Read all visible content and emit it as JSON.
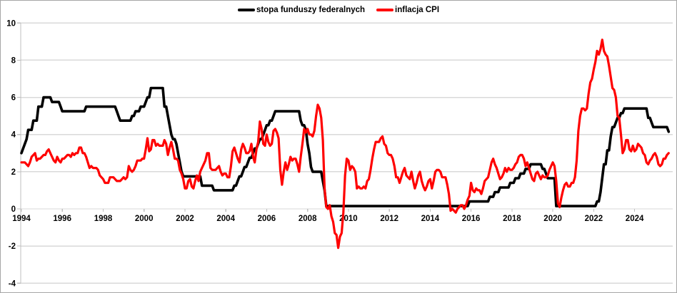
{
  "colors": {
    "series_fed_funds": "#000000",
    "series_cpi": "#ff0000",
    "gridline": "#d9d9d9",
    "axis_line": "#bfbfbf",
    "tick_text": "#000000",
    "frame_border": "#a6a6a6",
    "background": "#ffffff"
  },
  "chart_data": {
    "type": "line",
    "title": "",
    "xlabel": "",
    "ylabel": "",
    "grid": true,
    "legend_position": "top-center",
    "ylim": [
      -4,
      10
    ],
    "y_ticks": [
      10,
      8,
      6,
      4,
      2,
      0,
      -2,
      -4
    ],
    "x_ticks": [
      1994,
      1996,
      1998,
      2000,
      2002,
      2004,
      2006,
      2008,
      2010,
      2012,
      2014,
      2016,
      2018,
      2020,
      2022,
      2024
    ],
    "x_start": "1994-01",
    "x_end": "2025-09",
    "x_frequency": "monthly",
    "series": [
      {
        "name": "stopa funduszy federalnych",
        "color": "#000000",
        "line_width": 3.6,
        "values": [
          3,
          3.25,
          3.5,
          3.75,
          4.25,
          4.25,
          4.25,
          4.75,
          4.75,
          4.75,
          5.5,
          5.5,
          5.5,
          6,
          6,
          6,
          6,
          6,
          5.75,
          5.75,
          5.75,
          5.75,
          5.75,
          5.5,
          5.25,
          5.25,
          5.25,
          5.25,
          5.25,
          5.25,
          5.25,
          5.25,
          5.25,
          5.25,
          5.25,
          5.25,
          5.25,
          5.25,
          5.5,
          5.5,
          5.5,
          5.5,
          5.5,
          5.5,
          5.5,
          5.5,
          5.5,
          5.5,
          5.5,
          5.5,
          5.5,
          5.5,
          5.5,
          5.5,
          5.5,
          5.5,
          5.25,
          5,
          4.75,
          4.75,
          4.75,
          4.75,
          4.75,
          4.75,
          4.75,
          5,
          5,
          5.25,
          5.25,
          5.25,
          5.5,
          5.5,
          5.5,
          5.75,
          6,
          6,
          6.5,
          6.5,
          6.5,
          6.5,
          6.5,
          6.5,
          6.5,
          6.5,
          5.5,
          5.5,
          5,
          4.5,
          4,
          3.75,
          3.75,
          3.5,
          3,
          2.5,
          2,
          1.75,
          1.75,
          1.75,
          1.75,
          1.75,
          1.75,
          1.75,
          1.75,
          1.75,
          1.75,
          1.75,
          1.25,
          1.25,
          1.25,
          1.25,
          1.25,
          1.25,
          1.25,
          1,
          1,
          1,
          1,
          1,
          1,
          1,
          1,
          1,
          1,
          1,
          1,
          1.25,
          1.25,
          1.5,
          1.75,
          1.75,
          2,
          2.25,
          2.25,
          2.5,
          2.75,
          2.75,
          3,
          3.25,
          3.25,
          3.5,
          3.75,
          3.75,
          4,
          4.25,
          4.5,
          4.5,
          4.75,
          4.75,
          5,
          5.25,
          5.25,
          5.25,
          5.25,
          5.25,
          5.25,
          5.25,
          5.25,
          5.25,
          5.25,
          5.25,
          5.25,
          5.25,
          5.25,
          5.25,
          4.75,
          4.5,
          4.5,
          4.25,
          3.5,
          3,
          2.25,
          2,
          2,
          2,
          2,
          2,
          2,
          1.5,
          1,
          0.15,
          0.15,
          0.15,
          0.15,
          0.15,
          0.15,
          0.15,
          0.15,
          0.15,
          0.15,
          0.15,
          0.15,
          0.15,
          0.15,
          0.15,
          0.15,
          0.15,
          0.15,
          0.15,
          0.15,
          0.15,
          0.15,
          0.15,
          0.15,
          0.15,
          0.15,
          0.15,
          0.15,
          0.15,
          0.15,
          0.15,
          0.15,
          0.15,
          0.15,
          0.15,
          0.15,
          0.15,
          0.15,
          0.15,
          0.15,
          0.15,
          0.15,
          0.15,
          0.15,
          0.15,
          0.15,
          0.15,
          0.15,
          0.15,
          0.15,
          0.15,
          0.15,
          0.15,
          0.15,
          0.15,
          0.15,
          0.15,
          0.15,
          0.15,
          0.15,
          0.15,
          0.15,
          0.15,
          0.15,
          0.15,
          0.15,
          0.15,
          0.15,
          0.15,
          0.15,
          0.15,
          0.15,
          0.15,
          0.15,
          0.15,
          0.15,
          0.15,
          0.15,
          0.15,
          0.15,
          0.15,
          0.15,
          0.15,
          0.15,
          0.4,
          0.4,
          0.4,
          0.4,
          0.4,
          0.4,
          0.4,
          0.4,
          0.4,
          0.4,
          0.4,
          0.4,
          0.65,
          0.65,
          0.65,
          0.9,
          0.9,
          0.9,
          1.15,
          1.15,
          1.15,
          1.15,
          1.15,
          1.15,
          1.4,
          1.4,
          1.4,
          1.65,
          1.65,
          1.65,
          1.9,
          1.9,
          1.9,
          2.15,
          2.15,
          2.15,
          2.4,
          2.4,
          2.4,
          2.4,
          2.4,
          2.4,
          2.4,
          2.15,
          2.15,
          1.9,
          1.65,
          1.65,
          1.65,
          1.65,
          1.65,
          0.15,
          0.15,
          0.15,
          0.15,
          0.15,
          0.15,
          0.15,
          0.15,
          0.15,
          0.15,
          0.15,
          0.15,
          0.15,
          0.15,
          0.15,
          0.15,
          0.15,
          0.15,
          0.15,
          0.15,
          0.15,
          0.15,
          0.15,
          0.15,
          0.4,
          0.4,
          0.9,
          1.65,
          2.4,
          2.4,
          3.15,
          3.15,
          3.9,
          4.4,
          4.4,
          4.65,
          4.9,
          4.9,
          5.15,
          5.15,
          5.4,
          5.4,
          5.4,
          5.4,
          5.4,
          5.4,
          5.4,
          5.4,
          5.4,
          5.4,
          5.4,
          5.4,
          5.4,
          5.4,
          4.9,
          4.9,
          4.65,
          4.4,
          4.4,
          4.4,
          4.4,
          4.4,
          4.4,
          4.4,
          4.4,
          4.4,
          4.15
        ]
      },
      {
        "name": "inflacja CPI",
        "color": "#ff0000",
        "line_width": 3.2,
        "values": [
          2.5,
          2.5,
          2.5,
          2.4,
          2.3,
          2.5,
          2.8,
          2.9,
          3.0,
          2.6,
          2.7,
          2.7,
          2.8,
          2.9,
          2.9,
          3.1,
          3.2,
          3.0,
          2.8,
          2.6,
          2.5,
          2.8,
          2.6,
          2.5,
          2.7,
          2.7,
          2.8,
          2.9,
          2.9,
          2.8,
          3.0,
          2.9,
          3.0,
          3.0,
          3.3,
          3.3,
          3.0,
          3.0,
          2.8,
          2.5,
          2.2,
          2.3,
          2.2,
          2.2,
          2.2,
          2.1,
          1.8,
          1.7,
          1.6,
          1.4,
          1.4,
          1.4,
          1.7,
          1.7,
          1.7,
          1.6,
          1.5,
          1.5,
          1.5,
          1.6,
          1.7,
          1.6,
          1.7,
          2.3,
          2.1,
          2.0,
          2.1,
          2.3,
          2.6,
          2.6,
          2.6,
          2.7,
          2.7,
          3.2,
          3.8,
          3.1,
          3.2,
          3.7,
          3.7,
          3.4,
          3.5,
          3.4,
          3.4,
          3.4,
          3.7,
          3.5,
          2.9,
          3.3,
          3.6,
          3.2,
          2.7,
          2.7,
          2.6,
          2.1,
          1.9,
          1.6,
          1.1,
          1.1,
          1.5,
          1.6,
          1.2,
          1.1,
          1.5,
          1.8,
          1.5,
          2.0,
          2.2,
          2.4,
          2.6,
          3.0,
          3.0,
          2.2,
          2.1,
          2.1,
          2.1,
          2.2,
          2.3,
          2.0,
          1.8,
          1.9,
          1.9,
          1.7,
          1.7,
          2.3,
          3.1,
          3.3,
          3.0,
          2.7,
          2.5,
          3.2,
          3.5,
          3.3,
          3.0,
          3.0,
          3.1,
          3.5,
          2.8,
          2.5,
          3.2,
          3.6,
          4.7,
          4.3,
          3.5,
          3.4,
          4.0,
          3.6,
          3.4,
          3.5,
          4.2,
          4.3,
          4.1,
          3.8,
          2.1,
          1.3,
          2.0,
          2.5,
          2.1,
          2.4,
          2.8,
          2.6,
          2.7,
          2.7,
          2.4,
          2.0,
          2.8,
          3.5,
          4.3,
          4.1,
          4.3,
          4.0,
          4.0,
          3.9,
          4.2,
          5.0,
          5.6,
          5.4,
          4.9,
          3.7,
          1.1,
          0.1,
          0.0,
          0.2,
          -0.4,
          -0.7,
          -1.3,
          -1.4,
          -2.1,
          -1.5,
          -1.3,
          -0.2,
          1.8,
          2.7,
          2.6,
          2.1,
          2.3,
          2.2,
          2.0,
          1.1,
          1.2,
          1.1,
          1.1,
          1.2,
          1.1,
          1.5,
          1.6,
          2.1,
          2.7,
          3.2,
          3.6,
          3.6,
          3.6,
          3.8,
          3.9,
          3.5,
          3.4,
          3.0,
          2.9,
          2.9,
          2.7,
          2.3,
          1.7,
          1.7,
          1.4,
          1.7,
          2.0,
          2.2,
          1.8,
          1.7,
          1.6,
          2.0,
          1.5,
          1.1,
          1.4,
          1.8,
          2.0,
          1.5,
          1.2,
          1.0,
          1.2,
          1.5,
          1.6,
          1.1,
          1.5,
          2.0,
          2.1,
          2.1,
          2.0,
          1.7,
          1.7,
          1.7,
          1.3,
          0.8,
          -0.1,
          0.0,
          -0.1,
          -0.2,
          0.0,
          0.1,
          0.2,
          0.2,
          0.0,
          0.2,
          0.5,
          0.7,
          1.4,
          1.0,
          0.9,
          1.1,
          1.0,
          1.0,
          0.8,
          1.1,
          1.5,
          1.6,
          1.7,
          2.1,
          2.5,
          2.7,
          2.4,
          2.2,
          1.9,
          1.6,
          1.7,
          1.9,
          2.2,
          2.0,
          2.2,
          2.1,
          2.1,
          2.2,
          2.4,
          2.5,
          2.8,
          2.9,
          2.9,
          2.7,
          2.3,
          2.5,
          2.2,
          1.9,
          1.6,
          1.5,
          1.9,
          2.0,
          1.8,
          1.6,
          1.8,
          1.7,
          1.7,
          1.8,
          2.1,
          2.3,
          2.5,
          2.3,
          1.5,
          0.3,
          0.1,
          0.6,
          1.0,
          1.3,
          1.4,
          1.2,
          1.2,
          1.4,
          1.4,
          1.7,
          2.6,
          4.2,
          5.0,
          5.4,
          5.4,
          5.3,
          5.4,
          6.2,
          6.8,
          7.0,
          7.5,
          7.9,
          8.5,
          8.3,
          8.6,
          9.1,
          8.5,
          8.3,
          8.2,
          7.7,
          7.1,
          6.5,
          6.4,
          6.0,
          5.0,
          4.9,
          4.0,
          3.0,
          3.2,
          3.7,
          3.7,
          3.2,
          3.1,
          3.4,
          3.1,
          3.2,
          3.5,
          3.4,
          3.3,
          3.0,
          2.9,
          2.5,
          2.4,
          2.6,
          2.7,
          2.9,
          3.0,
          2.8,
          2.4,
          2.3,
          2.4,
          2.7,
          2.7,
          2.9,
          3.0
        ]
      }
    ]
  }
}
